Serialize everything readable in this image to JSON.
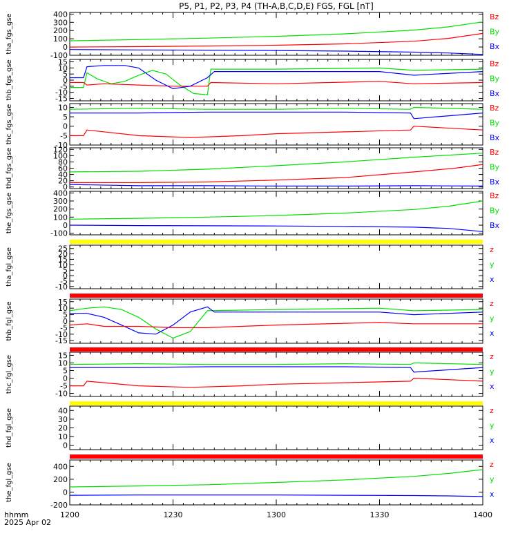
{
  "title": "P5, P1, P2, P3, P4 (TH-A,B,C,D,E) FGS, FGL [nT]",
  "footer": {
    "time_label": "hhmm",
    "date_label": "2025 Apr 02"
  },
  "colors": {
    "z": "#ff0000",
    "y": "#00e000",
    "x": "#0000ff",
    "bar_red": "#ff0000",
    "bar_yellow": "#ffff00",
    "axis": "#000000"
  },
  "chart_data": [
    {
      "type": "line",
      "ylabel": "tha_fgs_gse",
      "ylim": [
        -100,
        420
      ],
      "yticks": [
        -100,
        0,
        100,
        200,
        300,
        400
      ],
      "xlim": [
        0,
        120
      ],
      "legend": [
        "Bz",
        "By",
        "Bx"
      ],
      "series": [
        {
          "name": "By",
          "color": "#00e000",
          "x": [
            0,
            20,
            40,
            60,
            80,
            100,
            110,
            120
          ],
          "values": [
            75,
            90,
            108,
            130,
            160,
            205,
            245,
            305
          ]
        },
        {
          "name": "Bz",
          "color": "#ff0000",
          "x": [
            0,
            20,
            40,
            60,
            80,
            100,
            110,
            120
          ],
          "values": [
            0,
            5,
            12,
            22,
            38,
            70,
            105,
            165
          ]
        },
        {
          "name": "Bx",
          "color": "#0000ff",
          "x": [
            0,
            20,
            40,
            60,
            80,
            100,
            110,
            120
          ],
          "values": [
            -30,
            -35,
            -38,
            -42,
            -50,
            -62,
            -72,
            -90
          ]
        }
      ]
    },
    {
      "type": "line",
      "ylabel": "thb_fgs_gse",
      "ylim": [
        -17,
        17
      ],
      "yticks": [
        -15,
        -10,
        -5,
        0,
        5,
        10,
        15
      ],
      "xlim": [
        0,
        120
      ],
      "legend": [
        "Bz",
        "By",
        "Bx"
      ],
      "series": [
        {
          "name": "By",
          "color": "#00e000",
          "x": [
            0,
            4,
            5,
            8,
            12,
            16,
            20,
            24,
            28,
            32,
            36,
            40,
            41,
            60,
            90,
            100,
            120
          ],
          "values": [
            -6,
            -6,
            6,
            1,
            -3,
            -1,
            4,
            8,
            5,
            -4,
            -11,
            -12,
            9,
            9,
            10,
            8,
            9
          ]
        },
        {
          "name": "Bz",
          "color": "#ff0000",
          "x": [
            0,
            4,
            5,
            10,
            20,
            30,
            40,
            41,
            60,
            90,
            100,
            120
          ],
          "values": [
            -2,
            -2,
            -4,
            -3,
            -4,
            -5,
            -5,
            -2,
            -3,
            -1,
            -3,
            -2
          ]
        },
        {
          "name": "Bx",
          "color": "#0000ff",
          "x": [
            0,
            4,
            5,
            10,
            16,
            20,
            25,
            30,
            35,
            40,
            42,
            60,
            90,
            100,
            120
          ],
          "values": [
            2,
            2,
            11,
            12,
            12,
            10,
            0,
            -7,
            -5,
            2,
            7,
            7,
            7,
            4,
            7
          ]
        }
      ]
    },
    {
      "type": "line",
      "ylabel": "thc_fgs_gse",
      "ylim": [
        -10,
        12
      ],
      "yticks": [
        -10,
        -5,
        0,
        5,
        10
      ],
      "xlim": [
        0,
        120
      ],
      "legend": [
        "Bz",
        "By",
        "Bx"
      ],
      "series": [
        {
          "name": "By",
          "color": "#00e000",
          "x": [
            0,
            20,
            40,
            60,
            80,
            99,
            100,
            120
          ],
          "values": [
            9,
            9.5,
            9,
            9,
            9.5,
            9,
            10,
            9
          ]
        },
        {
          "name": "Bx",
          "color": "#0000ff",
          "x": [
            0,
            20,
            40,
            60,
            80,
            99,
            100,
            120
          ],
          "values": [
            7,
            7,
            7.5,
            7.5,
            7.5,
            7,
            4,
            7
          ]
        },
        {
          "name": "Bz",
          "color": "#ff0000",
          "x": [
            0,
            4,
            5,
            20,
            35,
            50,
            60,
            80,
            99,
            100,
            120
          ],
          "values": [
            -5,
            -5,
            -2,
            -5,
            -6,
            -5,
            -4,
            -3,
            -2,
            0,
            -2
          ]
        }
      ]
    },
    {
      "type": "line",
      "ylabel": "thd_fgs_gse",
      "ylim": [
        -5,
        125
      ],
      "yticks": [
        0,
        20,
        40,
        60,
        80,
        100,
        120
      ],
      "xlim": [
        0,
        120
      ],
      "legend": [
        "Bz",
        "By",
        "Bx"
      ],
      "series": [
        {
          "name": "By",
          "color": "#00e000",
          "x": [
            0,
            20,
            40,
            60,
            80,
            100,
            120
          ],
          "values": [
            48,
            50,
            57,
            68,
            80,
            95,
            108
          ]
        },
        {
          "name": "Bz",
          "color": "#ff0000",
          "x": [
            0,
            20,
            40,
            60,
            80,
            100,
            112,
            120
          ],
          "values": [
            14,
            14,
            16,
            22,
            30,
            48,
            60,
            72
          ]
        },
        {
          "name": "Bx",
          "color": "#0000ff",
          "x": [
            0,
            20,
            40,
            60,
            80,
            100,
            120
          ],
          "values": [
            8,
            4,
            4,
            3,
            3,
            4,
            3
          ]
        }
      ]
    },
    {
      "type": "line",
      "ylabel": "the_fgs_gse",
      "ylim": [
        -120,
        420
      ],
      "yticks": [
        -100,
        0,
        100,
        200,
        300,
        400
      ],
      "xlim": [
        0,
        120
      ],
      "legend": [
        "Bz",
        "By",
        "Bx"
      ],
      "series": [
        {
          "name": "By",
          "color": "#00e000",
          "x": [
            0,
            20,
            40,
            60,
            80,
            100,
            110,
            120
          ],
          "values": [
            75,
            85,
            100,
            120,
            150,
            195,
            235,
            300
          ]
        },
        {
          "name": "Bx",
          "color": "#0000ff",
          "x": [
            0,
            20,
            40,
            60,
            80,
            100,
            110,
            120
          ],
          "values": [
            0,
            -5,
            -8,
            -10,
            -15,
            -25,
            -40,
            -80
          ]
        }
      ]
    },
    {
      "type": "line",
      "ylabel": "tha_fgl_gse",
      "ylim": [
        -12,
        28
      ],
      "yticks": [
        -10,
        -5,
        0,
        5,
        10,
        15,
        20,
        25
      ],
      "xlim": [
        0,
        120
      ],
      "legend": [
        "z",
        "y",
        "x"
      ],
      "series": []
    },
    {
      "type": "line",
      "ylabel": "thb_fgl_gse",
      "ylim": [
        -17,
        17
      ],
      "yticks": [
        -15,
        -10,
        -5,
        0,
        5,
        10,
        15
      ],
      "xlim": [
        0,
        120
      ],
      "legend": [
        "z",
        "y",
        "x"
      ],
      "series": [
        {
          "name": "y",
          "color": "#00e000",
          "x": [
            0,
            5,
            10,
            15,
            20,
            25,
            30,
            35,
            40,
            60,
            90,
            100,
            120
          ],
          "values": [
            8,
            10,
            11,
            9,
            3,
            -6,
            -13,
            -8,
            8,
            9,
            10,
            8,
            9
          ]
        },
        {
          "name": "x",
          "color": "#0000ff",
          "x": [
            0,
            5,
            10,
            15,
            20,
            25,
            30,
            35,
            40,
            42,
            60,
            90,
            100,
            120
          ],
          "values": [
            6,
            6,
            3,
            -3,
            -9,
            -10,
            -3,
            7,
            11,
            7,
            7,
            7,
            5,
            7
          ]
        },
        {
          "name": "z",
          "color": "#ff0000",
          "x": [
            0,
            5,
            10,
            20,
            30,
            40,
            60,
            90,
            100,
            120
          ],
          "values": [
            -3,
            -2,
            -4,
            -4,
            -5,
            -5,
            -3,
            -1,
            -2,
            -2
          ]
        }
      ]
    },
    {
      "type": "line",
      "ylabel": "thc_fgl_gse",
      "ylim": [
        -12,
        17
      ],
      "yticks": [
        -10,
        -5,
        0,
        5,
        10,
        15
      ],
      "xlim": [
        0,
        120
      ],
      "legend": [
        "z",
        "y",
        "x"
      ],
      "series": [
        {
          "name": "y",
          "color": "#00e000",
          "x": [
            0,
            20,
            40,
            60,
            80,
            99,
            100,
            120
          ],
          "values": [
            9,
            9.5,
            9,
            9,
            9.5,
            9,
            10,
            9
          ]
        },
        {
          "name": "x",
          "color": "#0000ff",
          "x": [
            0,
            20,
            40,
            60,
            80,
            99,
            100,
            120
          ],
          "values": [
            7,
            7,
            7.5,
            7.5,
            7.5,
            7,
            4,
            7
          ]
        },
        {
          "name": "z",
          "color": "#ff0000",
          "x": [
            0,
            4,
            5,
            20,
            35,
            50,
            60,
            80,
            99,
            100,
            120
          ],
          "values": [
            -5,
            -5,
            -2,
            -5,
            -6,
            -5,
            -4,
            -3,
            -2,
            0,
            -2
          ]
        }
      ]
    },
    {
      "type": "line",
      "ylabel": "thd_fgl_gse",
      "ylim": [
        -5,
        45
      ],
      "yticks": [
        0,
        10,
        20,
        30,
        40
      ],
      "xlim": [
        0,
        120
      ],
      "legend": [
        "z",
        "y",
        "x"
      ],
      "series": []
    },
    {
      "type": "line",
      "ylabel": "the_fgl_gse",
      "ylim": [
        -200,
        500
      ],
      "yticks": [
        -200,
        0,
        200,
        400
      ],
      "xlim": [
        0,
        120
      ],
      "legend": [
        "z",
        "y",
        "x"
      ],
      "series": [
        {
          "name": "y",
          "color": "#00e000",
          "x": [
            0,
            20,
            40,
            60,
            80,
            100,
            110,
            120
          ],
          "values": [
            80,
            95,
            115,
            150,
            190,
            245,
            290,
            350
          ]
        },
        {
          "name": "x",
          "color": "#0000ff",
          "x": [
            0,
            20,
            40,
            60,
            80,
            100,
            110,
            120
          ],
          "values": [
            -50,
            -45,
            -45,
            -45,
            -50,
            -55,
            -60,
            -70
          ]
        }
      ]
    }
  ],
  "x_axis": {
    "ticks": [
      0,
      30,
      60,
      90,
      120
    ],
    "tick_labels": [
      "1200",
      "1230",
      "1300",
      "1330",
      "1400"
    ]
  }
}
